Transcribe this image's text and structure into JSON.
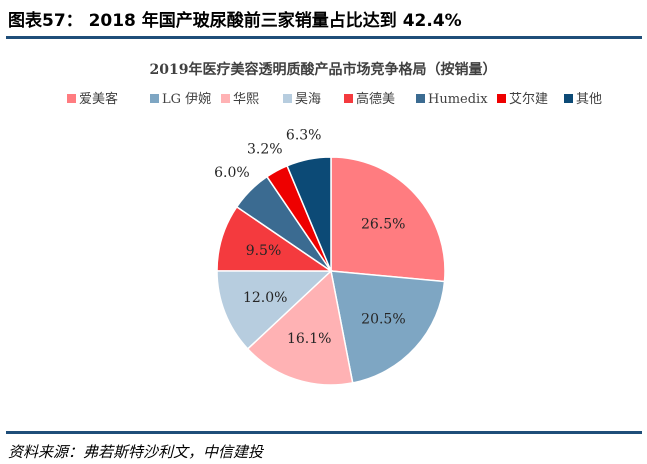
{
  "figure": {
    "title": "图表57： 2018 年国产玻尿酸前三家销量占比达到 42.4%",
    "source": "资料来源：弗若斯特沙利文，中信建投"
  },
  "chart_data": {
    "type": "pie",
    "title": "2019年医疗美容透明质酸产品市场竞争格局（按销量）",
    "slices": [
      {
        "name": "爱美客",
        "value": 26.5,
        "label": "26.5%",
        "color": "#ff7c80"
      },
      {
        "name": "LG 伊婉",
        "value": 20.5,
        "label": "20.5%",
        "color": "#7ea6c3"
      },
      {
        "name": "华熙",
        "value": 16.1,
        "label": "16.1%",
        "color": "#ffb2b4"
      },
      {
        "name": "昊海",
        "value": 12.0,
        "label": "12.0%",
        "color": "#b7cddf"
      },
      {
        "name": "高德美",
        "value": 9.5,
        "label": "9.5%",
        "color": "#f43a3e"
      },
      {
        "name": "Humedix",
        "value": 6.0,
        "label": "6.0%",
        "color": "#3b6b91"
      },
      {
        "name": "艾尔建",
        "value": 3.2,
        "label": "3.2%",
        "color": "#ee0000"
      },
      {
        "name": "其他",
        "value": 6.3,
        "label": "6.3%",
        "color": "#0c4a76"
      }
    ],
    "legend_position": "top",
    "start_angle": "12 o'clock",
    "direction": "clockwise"
  }
}
